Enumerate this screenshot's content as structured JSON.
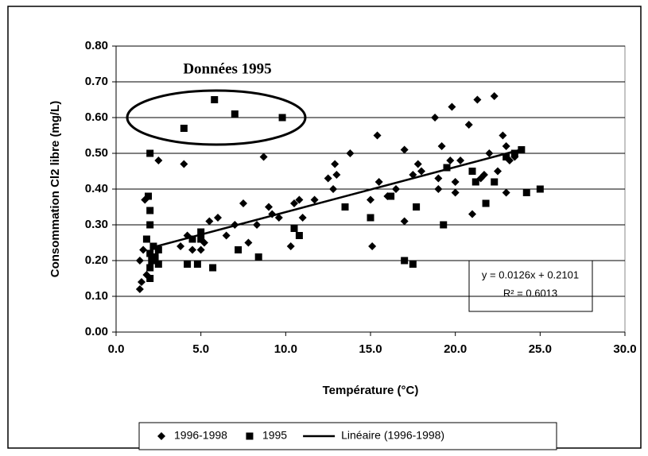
{
  "chart_data": {
    "type": "scatter",
    "x_label": "Température (°C)",
    "y_label": "Consommation Cl2 libre (mg/L)",
    "xlim": [
      0,
      30
    ],
    "ylim": [
      0,
      0.8
    ],
    "xticks": [
      {
        "value": 0,
        "label": "0.0"
      },
      {
        "value": 5,
        "label": "5.0"
      },
      {
        "value": 10,
        "label": "10.0"
      },
      {
        "value": 15,
        "label": "15.0"
      },
      {
        "value": 20,
        "label": "20.0"
      },
      {
        "value": 25,
        "label": "25.0"
      },
      {
        "value": 30,
        "label": "30.0"
      }
    ],
    "yticks": [
      {
        "value": 0,
        "label": "0.00"
      },
      {
        "value": 0.1,
        "label": "0.10"
      },
      {
        "value": 0.2,
        "label": "0.20"
      },
      {
        "value": 0.3,
        "label": "0.30"
      },
      {
        "value": 0.4,
        "label": "0.40"
      },
      {
        "value": 0.5,
        "label": "0.50"
      },
      {
        "value": 0.6,
        "label": "0.60"
      },
      {
        "value": 0.7,
        "label": "0.70"
      },
      {
        "value": 0.8,
        "label": "0.80"
      }
    ],
    "grid": true,
    "legend": "bottom",
    "annotations": [
      {
        "text": "Données 1995"
      },
      {
        "text": "y = 0.0126x + 0.2101"
      },
      {
        "text": "R² = 0.6013"
      }
    ],
    "series": [
      {
        "name": "1996-1998",
        "color": "#000000",
        "marker": "diamond",
        "x": [
          1.4,
          1.5,
          1.4,
          1.6,
          1.7,
          1.8,
          2.5,
          4.0,
          3.8,
          4.2,
          4.5,
          5.0,
          5.2,
          5.5,
          6.0,
          6.5,
          7.0,
          7.5,
          7.8,
          8.3,
          8.7,
          9.0,
          9.2,
          9.6,
          10.3,
          10.5,
          10.8,
          11.0,
          11.7,
          12.5,
          12.8,
          13.0,
          12.9,
          13.8,
          15.0,
          15.1,
          15.4,
          15.5,
          16.0,
          16.5,
          17.0,
          17.0,
          17.5,
          17.8,
          18.0,
          18.8,
          19.0,
          19.2,
          19.0,
          19.7,
          19.8,
          20.0,
          20.3,
          20.8,
          21.0,
          21.3,
          21.5,
          21.7,
          22.0,
          22.3,
          22.5,
          22.8,
          23.0,
          23.0,
          23.2,
          23.5,
          20.0
        ],
        "values": [
          0.12,
          0.14,
          0.2,
          0.23,
          0.37,
          0.16,
          0.48,
          0.47,
          0.24,
          0.27,
          0.23,
          0.23,
          0.25,
          0.31,
          0.32,
          0.27,
          0.3,
          0.36,
          0.25,
          0.3,
          0.49,
          0.35,
          0.33,
          0.32,
          0.24,
          0.36,
          0.37,
          0.32,
          0.37,
          0.43,
          0.4,
          0.44,
          0.47,
          0.5,
          0.37,
          0.24,
          0.55,
          0.42,
          0.38,
          0.4,
          0.51,
          0.31,
          0.44,
          0.47,
          0.45,
          0.6,
          0.43,
          0.52,
          0.4,
          0.48,
          0.63,
          0.39,
          0.48,
          0.58,
          0.33,
          0.65,
          0.43,
          0.44,
          0.5,
          0.66,
          0.45,
          0.55,
          0.39,
          0.52,
          0.48,
          0.49,
          0.42
        ]
      },
      {
        "name": "1995",
        "color": "#000000",
        "marker": "square",
        "x": [
          2.0,
          4.0,
          5.8,
          7.0,
          9.8,
          1.8,
          1.9,
          2.0,
          2.0,
          2.0,
          2.0,
          2.0,
          2.1,
          2.2,
          2.3,
          2.5,
          2.5,
          4.2,
          4.8,
          4.5,
          5.0,
          5.0,
          5.7,
          7.2,
          8.4,
          10.5,
          10.8,
          13.5,
          15.0,
          16.2,
          17.0,
          17.5,
          17.7,
          19.3,
          19.5,
          21.0,
          21.2,
          21.8,
          22.3,
          23.0,
          23.5,
          23.9,
          24.2,
          25.0
        ],
        "values": [
          0.5,
          0.57,
          0.65,
          0.61,
          0.6,
          0.26,
          0.38,
          0.34,
          0.3,
          0.22,
          0.18,
          0.15,
          0.2,
          0.24,
          0.21,
          0.23,
          0.19,
          0.19,
          0.19,
          0.26,
          0.28,
          0.26,
          0.18,
          0.23,
          0.21,
          0.29,
          0.27,
          0.35,
          0.32,
          0.38,
          0.2,
          0.19,
          0.35,
          0.3,
          0.46,
          0.45,
          0.42,
          0.36,
          0.42,
          0.49,
          0.5,
          0.51,
          0.39,
          0.4
        ]
      },
      {
        "name": "Linéaire (1996-1998)",
        "color": "#000000",
        "marker": "line",
        "x": [
          2.0,
          24.0
        ],
        "values": [
          0.235,
          0.512
        ]
      }
    ]
  }
}
